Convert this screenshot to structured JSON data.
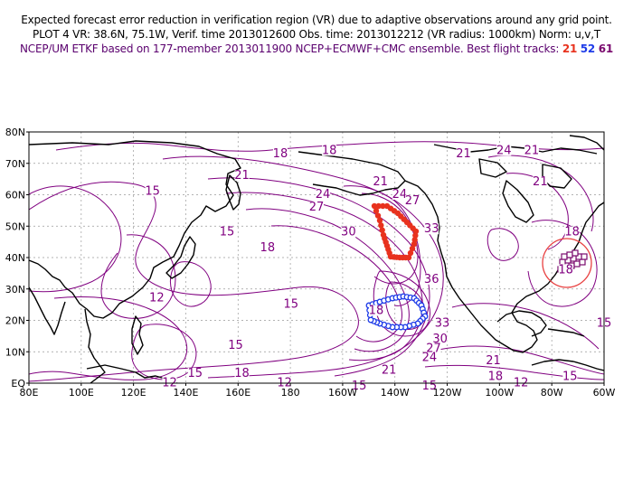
{
  "header": {
    "line1": "Expected forecast error reduction in verification region (VR) due to adaptive observations around any grid point.",
    "line2": "PLOT 4 VR: 38.6N, 75.1W, Verif. time 2013012600 Obs. time: 2013012212 (VR radius: 1000km) Norm: u,v,T",
    "line3_prefix": "NCEP/UM ETKF based on 177-member 2013011900 NCEP+ECMWF+CMC ensemble. Best flight tracks:",
    "track_a": "21",
    "track_b": "52",
    "track_c": "61"
  },
  "map": {
    "lon_range": [
      30,
      300
    ],
    "lat_range": [
      0,
      80
    ],
    "x_ticks": [
      "80E",
      "100E",
      "120E",
      "140E",
      "160E",
      "180",
      "160W",
      "140W",
      "120W",
      "100W",
      "80W",
      "60W"
    ],
    "y_ticks": [
      "EQ",
      "10N",
      "20N",
      "30N",
      "40N",
      "50N",
      "60N",
      "70N",
      "80N"
    ],
    "verification_region": {
      "lat": 38.6,
      "lon": -75.1,
      "radius_km": 1000,
      "color": "#e84040"
    },
    "contour_labels": [
      {
        "text": "18",
        "lon": 148,
        "lat": 72
      },
      {
        "text": "18",
        "lon": 171,
        "lat": 73
      },
      {
        "text": "21",
        "lon": 234,
        "lat": 72
      },
      {
        "text": "24",
        "lon": 253,
        "lat": 73
      },
      {
        "text": "21",
        "lon": 266,
        "lat": 73
      },
      {
        "text": "21",
        "lon": 130,
        "lat": 65
      },
      {
        "text": "21",
        "lon": 195,
        "lat": 63
      },
      {
        "text": "21",
        "lon": 270,
        "lat": 63
      },
      {
        "text": "15",
        "lon": 88,
        "lat": 60
      },
      {
        "text": "24",
        "lon": 168,
        "lat": 59
      },
      {
        "text": "24",
        "lon": 204,
        "lat": 59
      },
      {
        "text": "27",
        "lon": 165,
        "lat": 55
      },
      {
        "text": "27",
        "lon": 210,
        "lat": 57
      },
      {
        "text": "30",
        "lon": 180,
        "lat": 47
      },
      {
        "text": "33",
        "lon": 219,
        "lat": 48
      },
      {
        "text": "15",
        "lon": 123,
        "lat": 47
      },
      {
        "text": "18",
        "lon": 142,
        "lat": 42
      },
      {
        "text": "18",
        "lon": 285,
        "lat": 47
      },
      {
        "text": "18",
        "lon": 282,
        "lat": 35
      },
      {
        "text": "36",
        "lon": 219,
        "lat": 32
      },
      {
        "text": "12",
        "lon": 90,
        "lat": 26
      },
      {
        "text": "15",
        "lon": 153,
        "lat": 24
      },
      {
        "text": "18",
        "lon": 193,
        "lat": 22
      },
      {
        "text": "33",
        "lon": 224,
        "lat": 18
      },
      {
        "text": "30",
        "lon": 223,
        "lat": 13
      },
      {
        "text": "27",
        "lon": 220,
        "lat": 10
      },
      {
        "text": "24",
        "lon": 218,
        "lat": 7
      },
      {
        "text": "15",
        "lon": 300,
        "lat": 18
      },
      {
        "text": "15",
        "lon": 127,
        "lat": 11
      },
      {
        "text": "15",
        "lon": 108,
        "lat": 2
      },
      {
        "text": "18",
        "lon": 130,
        "lat": 2
      },
      {
        "text": "12",
        "lon": 150,
        "lat": -1
      },
      {
        "text": "15",
        "lon": 185,
        "lat": -2
      },
      {
        "text": "21",
        "lon": 199,
        "lat": 3
      },
      {
        "text": "15",
        "lon": 218,
        "lat": -2
      },
      {
        "text": "21",
        "lon": 248,
        "lat": 6
      },
      {
        "text": "18",
        "lon": 249,
        "lat": 1
      },
      {
        "text": "12",
        "lon": 261,
        "lat": -1
      },
      {
        "text": "15",
        "lon": 284,
        "lat": 1
      },
      {
        "text": "12",
        "lon": 96,
        "lat": -1
      }
    ]
  }
}
